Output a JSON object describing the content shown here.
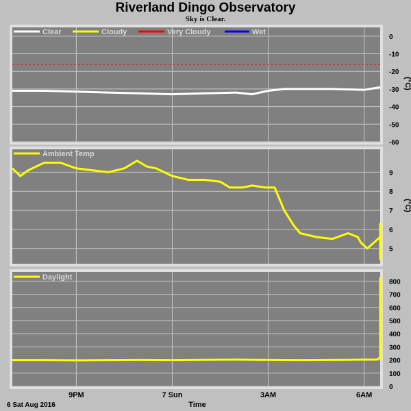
{
  "header": {
    "title": "Riverland Dingo Observatory",
    "subtitle": "Sky is Clear."
  },
  "footer": {
    "date_label": "6 Sat Aug 2016",
    "x_axis_label": "Time"
  },
  "colors": {
    "plot_bg": "#808080",
    "grid": "#c8c8c8",
    "clear": "#ffffff",
    "cloudy": "#ffff00",
    "very_cloudy": "#ff0000",
    "wet": "#0000ff"
  },
  "chart_data": [
    {
      "type": "line",
      "title": "",
      "ylabel": "(°C)",
      "ylim": [
        -60,
        5
      ],
      "yticks": [
        0,
        -10,
        -20,
        -30,
        -40,
        -50,
        -60
      ],
      "xticks": [
        "9PM",
        "7 Sun",
        "3AM",
        "6AM"
      ],
      "xlim_hours": [
        19.0,
        30.5
      ],
      "xtick_hours": [
        21,
        24,
        27,
        30
      ],
      "legend": [
        "Clear",
        "Cloudy",
        "Very Cloudy",
        "Wet"
      ],
      "thresholds": [
        {
          "name": "Very Cloudy",
          "value": -16
        }
      ],
      "series": [
        {
          "name": "Clear",
          "x": [
            19.0,
            20.0,
            21.0,
            22.0,
            23.0,
            24.0,
            25.0,
            26.0,
            26.5,
            27.0,
            27.5,
            28.0,
            29.0,
            30.0,
            30.5
          ],
          "values": [
            -31,
            -31,
            -31.5,
            -32,
            -32.5,
            -33,
            -32.5,
            -32,
            -33,
            -31,
            -30,
            -30,
            -30,
            -30.5,
            -29
          ]
        }
      ]
    },
    {
      "type": "line",
      "title": "",
      "ylabel": "(°C)",
      "ylim": [
        4.2,
        10.2
      ],
      "yticks": [
        5,
        6,
        7,
        8,
        9
      ],
      "xticks": [
        "9PM",
        "7 Sun",
        "3AM",
        "6AM"
      ],
      "xlim_hours": [
        19.0,
        30.5
      ],
      "xtick_hours": [
        21,
        24,
        27,
        30
      ],
      "legend": [
        "Ambient Temp"
      ],
      "series": [
        {
          "name": "Ambient Temp",
          "x": [
            19.0,
            19.25,
            19.5,
            20.0,
            20.5,
            21.0,
            21.5,
            22.0,
            22.5,
            22.9,
            23.2,
            23.5,
            24.0,
            24.5,
            25.0,
            25.5,
            25.8,
            26.2,
            26.5,
            26.9,
            27.2,
            27.5,
            27.8,
            28.0,
            28.5,
            29.0,
            29.5,
            29.8,
            29.9,
            30.1,
            30.5,
            30.8,
            31.2,
            31.4,
            31.5
          ],
          "values": [
            9.2,
            8.8,
            9.1,
            9.5,
            9.5,
            9.2,
            9.1,
            9.0,
            9.2,
            9.6,
            9.3,
            9.2,
            8.8,
            8.6,
            8.6,
            8.5,
            8.2,
            8.2,
            8.3,
            8.2,
            8.2,
            7.0,
            6.2,
            5.8,
            5.6,
            5.5,
            5.8,
            5.6,
            5.3,
            5.0,
            5.6,
            6.3,
            6.3,
            5.2,
            4.4
          ]
        }
      ]
    },
    {
      "type": "line",
      "title": "",
      "ylabel": "",
      "ylim": [
        0,
        870
      ],
      "yticks": [
        0,
        100,
        200,
        300,
        400,
        500,
        600,
        700,
        800
      ],
      "xticks": [
        "9PM",
        "7 Sun",
        "3AM",
        "6AM"
      ],
      "xlim_hours": [
        19.0,
        30.5
      ],
      "xtick_hours": [
        21,
        24,
        27,
        30
      ],
      "legend": [
        "Daylight"
      ],
      "series": [
        {
          "name": "Daylight",
          "x": [
            19.0,
            20.0,
            21.0,
            22.0,
            23.0,
            24.0,
            25.0,
            26.0,
            27.0,
            28.0,
            29.0,
            30.0,
            30.4,
            30.55,
            30.65,
            30.75,
            30.85,
            31.0,
            31.2,
            31.4,
            31.5
          ],
          "values": [
            200,
            200,
            198,
            200,
            201,
            200,
            202,
            203,
            201,
            200,
            201,
            203,
            203,
            220,
            350,
            520,
            600,
            650,
            700,
            780,
            830
          ]
        }
      ]
    }
  ]
}
